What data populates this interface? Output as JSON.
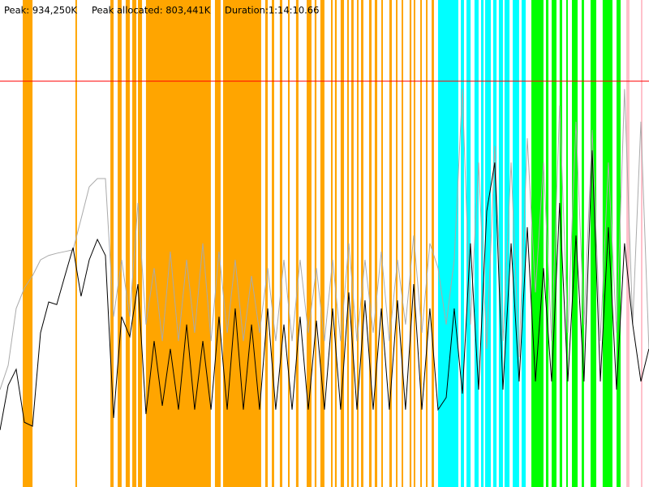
{
  "chart_data": {
    "type": "line",
    "peak": {
      "value": 934250,
      "label": "Peak: 934,250K"
    },
    "peak_allocated": "Peak allocated: 803,441K",
    "duration": "Duration:1:14:10.66",
    "peak_color": "#ff0000",
    "xlim": [
      0,
      4450.66
    ],
    "ylim": [
      0,
      1121100
    ],
    "x": [
      0,
      56,
      111,
      167,
      223,
      278,
      334,
      389,
      445,
      501,
      556,
      612,
      668,
      723,
      779,
      834,
      890,
      946,
      1001,
      1057,
      1113,
      1168,
      1224,
      1280,
      1335,
      1391,
      1447,
      1502,
      1558,
      1613,
      1669,
      1725,
      1780,
      1836,
      1891,
      1947,
      2003,
      2058,
      2114,
      2170,
      2225,
      2281,
      2336,
      2392,
      2448,
      2503,
      2559,
      2615,
      2670,
      2726,
      2781,
      2837,
      2893,
      2948,
      3004,
      3060,
      3115,
      3171,
      3226,
      3282,
      3338,
      3393,
      3449,
      3505,
      3560,
      3616,
      3672,
      3727,
      3783,
      3838,
      3894,
      3950,
      4005,
      4061,
      4117,
      4172,
      4228,
      4283,
      4339,
      4395,
      4450
    ],
    "series": [
      {
        "color": "#aaaaaa",
        "values": [
          224000,
          280000,
          411000,
          458000,
          486000,
          523000,
          533000,
          538000,
          542000,
          546000,
          617000,
          691000,
          710000,
          710000,
          392000,
          523000,
          392000,
          654000,
          374000,
          504000,
          336000,
          542000,
          336000,
          523000,
          355000,
          561000,
          336000,
          542000,
          355000,
          523000,
          336000,
          486000,
          355000,
          504000,
          336000,
          523000,
          336000,
          523000,
          355000,
          504000,
          336000,
          523000,
          336000,
          561000,
          336000,
          523000,
          355000,
          542000,
          336000,
          523000,
          374000,
          579000,
          355000,
          561000,
          504000,
          374000,
          523000,
          916000,
          374000,
          747000,
          318000,
          785000,
          336000,
          747000,
          299000,
          803000,
          448000,
          747000,
          336000,
          878000,
          355000,
          841000,
          374000,
          822000,
          336000,
          747000,
          355000,
          916000,
          374000,
          841000,
          318000
        ]
      },
      {
        "color": "#000000",
        "values": [
          131000,
          234000,
          271000,
          149000,
          140000,
          355000,
          426000,
          420000,
          486000,
          551000,
          439000,
          523000,
          570000,
          533000,
          159000,
          392000,
          346000,
          467000,
          168000,
          336000,
          187000,
          318000,
          178000,
          374000,
          178000,
          336000,
          178000,
          392000,
          178000,
          411000,
          178000,
          374000,
          178000,
          411000,
          178000,
          374000,
          178000,
          392000,
          178000,
          383000,
          178000,
          411000,
          178000,
          448000,
          178000,
          430000,
          178000,
          411000,
          178000,
          430000,
          178000,
          467000,
          178000,
          411000,
          178000,
          206000,
          411000,
          215000,
          561000,
          224000,
          635000,
          747000,
          224000,
          561000,
          243000,
          598000,
          243000,
          504000,
          243000,
          654000,
          243000,
          579000,
          243000,
          775000,
          243000,
          598000,
          224000,
          561000,
          374000,
          243000,
          318000
        ]
      }
    ],
    "bands": [
      {
        "color": "#ffa500",
        "spans": [
          [
            156,
            223
          ],
          [
            517,
            528
          ],
          [
            757,
            779
          ],
          [
            807,
            834
          ],
          [
            862,
            890
          ],
          [
            907,
            935
          ],
          [
            946,
            974
          ],
          [
            1001,
            1446
          ],
          [
            1474,
            1513
          ],
          [
            1530,
            1791
          ],
          [
            1819,
            1836
          ],
          [
            1864,
            1880
          ],
          [
            1919,
            1936
          ],
          [
            1975,
            1986
          ],
          [
            2030,
            2047
          ],
          [
            2103,
            2136
          ],
          [
            2158,
            2170
          ],
          [
            2197,
            2225
          ],
          [
            2270,
            2281
          ],
          [
            2297,
            2309
          ],
          [
            2336,
            2359
          ],
          [
            2381,
            2392
          ],
          [
            2409,
            2425
          ],
          [
            2448,
            2459
          ],
          [
            2476,
            2492
          ],
          [
            2531,
            2548
          ],
          [
            2570,
            2587
          ],
          [
            2615,
            2626
          ],
          [
            2670,
            2687
          ],
          [
            2715,
            2726
          ],
          [
            2754,
            2765
          ],
          [
            2809,
            2821
          ],
          [
            2837,
            2848
          ],
          [
            2882,
            2893
          ],
          [
            2921,
            2932
          ],
          [
            2960,
            2976
          ]
        ]
      },
      {
        "color": "#00ffff",
        "spans": [
          [
            3004,
            3143
          ],
          [
            3160,
            3182
          ],
          [
            3199,
            3227
          ],
          [
            3254,
            3282
          ],
          [
            3299,
            3316
          ],
          [
            3327,
            3366
          ],
          [
            3382,
            3405
          ],
          [
            3421,
            3449
          ],
          [
            3460,
            3494
          ],
          [
            3516,
            3560
          ],
          [
            3577,
            3605
          ]
        ]
      },
      {
        "color": "#00ff00",
        "spans": [
          [
            3644,
            3727
          ],
          [
            3744,
            3761
          ],
          [
            3783,
            3816
          ],
          [
            3838,
            3855
          ],
          [
            3883,
            3894
          ],
          [
            3922,
            3961
          ],
          [
            3989,
            4005
          ],
          [
            4050,
            4089
          ],
          [
            4133,
            4200
          ],
          [
            4228,
            4256
          ]
        ]
      },
      {
        "color": "#ffc0cb",
        "spans": [
          [
            4295,
            4317
          ],
          [
            4395,
            4406
          ]
        ]
      }
    ]
  }
}
